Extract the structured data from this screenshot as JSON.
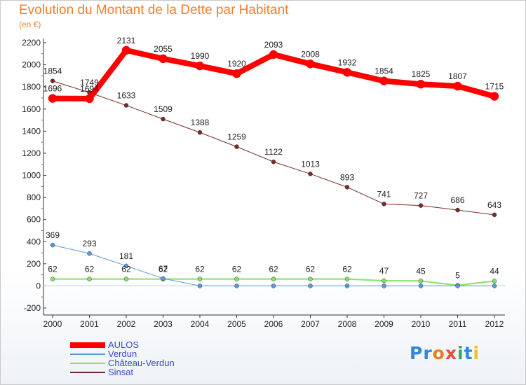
{
  "title": "Evolution du Montant de la Dette par Habitant",
  "unit": "(en €)",
  "logo": {
    "letters": [
      "P",
      "r",
      "o",
      "x",
      "i",
      "t",
      "i"
    ],
    "colors": [
      "#2e86de",
      "#2e86de",
      "#e67e22",
      "#e74c3c",
      "#27ae60",
      "#2e86de",
      "#f1c40f"
    ]
  },
  "chart_data": {
    "type": "line",
    "title": "Evolution du Montant de la Dette par Habitant",
    "ylabel": "(en €)",
    "x": [
      "2000",
      "2001",
      "2002",
      "2003",
      "2004",
      "2005",
      "2006",
      "2007",
      "2008",
      "2009",
      "2010",
      "2011",
      "2012"
    ],
    "ylim": [
      -200,
      2200
    ],
    "yticks": [
      -200,
      0,
      200,
      400,
      600,
      800,
      1000,
      1200,
      1400,
      1600,
      1800,
      2000,
      2200
    ],
    "grid": false,
    "legend_position": "bottom-left",
    "series": [
      {
        "name": "AULOS",
        "color": "#ff0000",
        "values": [
          1696,
          1694,
          2131,
          2055,
          1990,
          1920,
          2093,
          2008,
          1932,
          1854,
          1825,
          1807,
          1715
        ],
        "labels": [
          "1696",
          "1694",
          "2131",
          "2055",
          "1990",
          "1920",
          "2093",
          "2008",
          "1932",
          "1854",
          "1825",
          "1807",
          "1715"
        ]
      },
      {
        "name": "Verdun",
        "color": "#5b9bd5",
        "values": [
          369,
          293,
          181,
          67,
          0,
          0,
          0,
          0,
          0,
          0,
          0,
          0,
          0
        ],
        "labels": [
          "369",
          "293",
          "181",
          "67",
          "",
          "",
          "",
          "",
          "",
          "",
          "",
          "",
          ""
        ]
      },
      {
        "name": "Château-Verdun",
        "color": "#86e06b",
        "values": [
          62,
          62,
          62,
          62,
          62,
          62,
          62,
          62,
          62,
          47,
          45,
          5,
          44
        ],
        "labels": [
          "62",
          "62",
          "62",
          "62",
          "62",
          "62",
          "62",
          "62",
          "62",
          "47",
          "45",
          "5",
          "44"
        ]
      },
      {
        "name": "Sinsat",
        "color": "#7a2a2a",
        "values": [
          1854,
          1749,
          1633,
          1509,
          1388,
          1259,
          1122,
          1013,
          893,
          741,
          727,
          686,
          643
        ],
        "labels": [
          "1854",
          "1749",
          "1633",
          "1509",
          "1388",
          "1259",
          "1122",
          "1013",
          "893",
          "741",
          "727",
          "686",
          "643"
        ]
      }
    ]
  }
}
